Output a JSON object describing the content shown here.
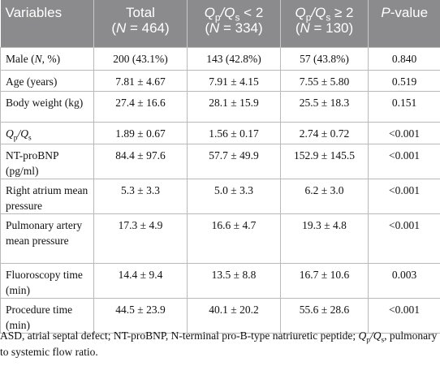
{
  "header": [
    [
      "Variables"
    ],
    [
      "Total",
      "(",
      "N",
      " = 464)"
    ],
    [
      "Q",
      "p",
      "/Q",
      "s",
      " < 2",
      "(",
      "N",
      " = 334)"
    ],
    [
      "Q",
      "p",
      "/Q",
      "s",
      " ≥ 2",
      "(",
      "N",
      " = 130)"
    ],
    [
      "P",
      "-value"
    ]
  ],
  "rows": [
    {
      "label": [
        "Male (",
        "N",
        ", %)"
      ],
      "values": [
        "200 (43.1%)",
        "143 (42.8%)",
        "57 (43.8%)",
        "0.840"
      ]
    },
    {
      "label": [
        "Age (years)"
      ],
      "values": [
        "7.81 ± 4.67",
        "7.91 ± 4.15",
        "7.55 ± 5.80",
        "0.519"
      ]
    },
    {
      "label": [
        "Body weight (kg)"
      ],
      "values": [
        "27.4 ± 16.6",
        "28.1 ± 15.9",
        "25.5 ± 18.3",
        "0.151"
      ]
    },
    {
      "label": [
        "Q",
        "p",
        "/Q",
        "s"
      ],
      "values": [
        "1.89 ± 0.67",
        "1.56 ± 0.17",
        "2.74 ± 0.72",
        "<0.001"
      ]
    },
    {
      "label": [
        "NT-proBNP (pg/ml)"
      ],
      "values": [
        "84.4 ± 97.6",
        "57.7 ± 49.9",
        "152.9 ± 145.5",
        "<0.001"
      ]
    },
    {
      "label": [
        "Right atrium mean pressure"
      ],
      "values": [
        "5.3 ± 3.3",
        "5.0 ± 3.3",
        "6.2 ± 3.0",
        "<0.001"
      ]
    },
    {
      "label": [
        "Pulmonary artery mean pressure"
      ],
      "values": [
        "17.3 ± 4.9",
        "16.6 ± 4.7",
        "19.3 ± 4.8",
        "<0.001"
      ]
    },
    {
      "label": [
        "Fluoroscopy time (min)"
      ],
      "values": [
        "14.4 ± 9.4",
        "13.5 ± 8.8",
        "16.7 ± 10.6",
        "0.003"
      ]
    },
    {
      "label": [
        "Procedure time (min)"
      ],
      "values": [
        "44.5 ± 23.9",
        "40.1 ± 20.2",
        "55.6 ± 28.6",
        "<0.001"
      ]
    }
  ],
  "footnote": [
    "ASD, atrial septal defect; NT-proBNP, N-terminal pro-B-type natriuretic peptide; ",
    "Q",
    "p",
    "/Q",
    "s",
    ", pulmonary to systemic flow ratio."
  ]
}
